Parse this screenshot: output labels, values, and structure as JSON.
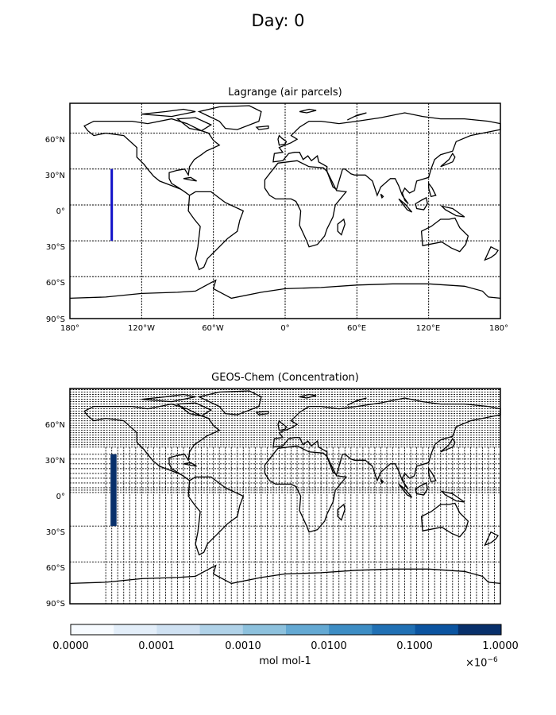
{
  "figure": {
    "title": "Day: 0"
  },
  "top_map": {
    "title": "Lagrange (air parcels)",
    "lat_ticks": [
      "60°N",
      "30°N",
      "0°",
      "30°S",
      "60°S",
      "90°S"
    ],
    "lon_ticks": [
      "180°",
      "120°W",
      "60°W",
      "0°",
      "60°E",
      "120°E",
      "180°"
    ],
    "parcel_line": {
      "lon": -145,
      "lat_min": -30,
      "lat_max": 30,
      "color": "#1010c8"
    }
  },
  "bottom_map": {
    "title": "GEOS-Chem (Concentration)",
    "lat_ticks": [
      "60°N",
      "30°N",
      "0°",
      "30°S",
      "60°S",
      "90°S"
    ],
    "concentration_column": {
      "lon_min": -146,
      "lon_max": -141,
      "lat_min": -30,
      "lat_max": 30,
      "color": "#08306b"
    }
  },
  "colorbar": {
    "tick_labels": [
      "0.0000",
      "0.0001",
      "0.0010",
      "0.0100",
      "0.1000",
      "1.0000"
    ],
    "label": "mol mol-1",
    "multiplier_base": "×10",
    "multiplier_exp": "−6",
    "colors": [
      "#f7fbff",
      "#e3eef9",
      "#cfe1f2",
      "#b0d2e8",
      "#8dc1dd",
      "#64a9d3",
      "#3d8dc4",
      "#2070b4",
      "#0b54a0",
      "#08306b"
    ]
  }
}
